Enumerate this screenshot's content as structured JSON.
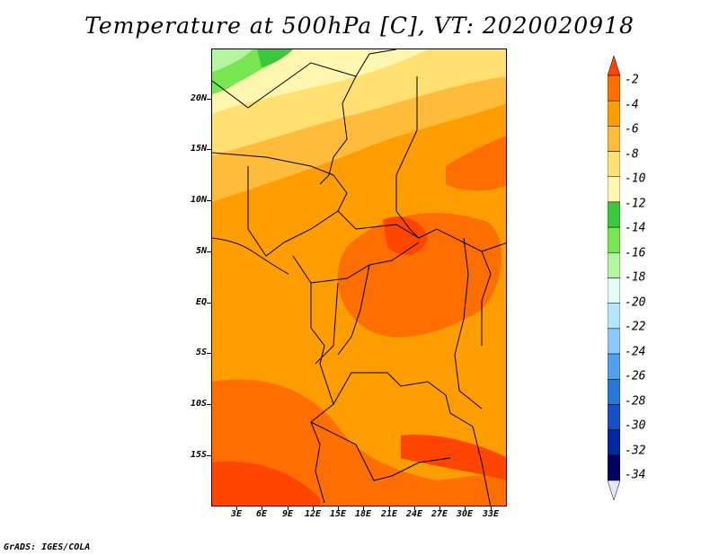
{
  "title": "Temperature at 500hPa [C], VT: 2020020918",
  "footer": "GrADS: IGES/COLA",
  "map": {
    "lat_labels": [
      "20N",
      "15N",
      "10N",
      "5N",
      "EQ",
      "5S",
      "10S",
      "15S"
    ],
    "lon_labels": [
      "3E",
      "6E",
      "9E",
      "12E",
      "15E",
      "18E",
      "21E",
      "24E",
      "27E",
      "30E",
      "33E"
    ],
    "lat_range": [
      -19.5,
      24.5
    ],
    "lon_range": [
      0.5,
      35.5
    ]
  },
  "colorbar": {
    "labels": [
      "-2",
      "-4",
      "-6",
      "-8",
      "-10",
      "-12",
      "-14",
      "-16",
      "-18",
      "-20",
      "-22",
      "-24",
      "-26",
      "-28",
      "-30",
      "-32",
      "-34"
    ],
    "colors": [
      "#ff4500",
      "#fe6e00",
      "#fe9d00",
      "#ffbb3a",
      "#ffe070",
      "#fff7b0",
      "#3cc83c",
      "#78e650",
      "#b4f5a0",
      "#e6fafa",
      "#b4e6ff",
      "#8cc8ff",
      "#50a0f0",
      "#2878dc",
      "#1450c8",
      "#0028a0",
      "#000064",
      "#e6e6f5"
    ],
    "units": "C"
  }
}
